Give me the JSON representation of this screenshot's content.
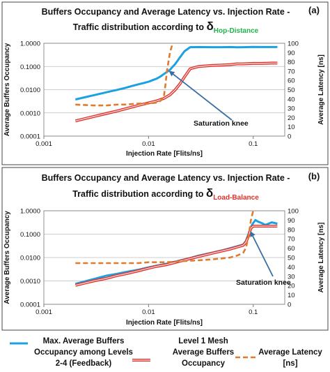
{
  "chart_data": [
    {
      "type": "line",
      "panel": "(a)",
      "title_line1": "Buffers Occupancy and Average Latency vs. Injection Rate -",
      "title_line2": "Traffic distribution according to",
      "delta_symbol": "δ",
      "delta_subscript": "Hop-Distance",
      "delta_color": "#22b14c",
      "xlabel": "Injection Rate [Flits/ns]",
      "ylabel_left": "Average Buffers Occupancy",
      "ylabel_right": "Average Latency [ns]",
      "x_scale": "log",
      "xlim": [
        0.001,
        0.2
      ],
      "x_ticks": [
        "0.001",
        "0.01",
        "0.1"
      ],
      "y_left_scale": "log",
      "y_left_lim": [
        0.0001,
        1.0
      ],
      "y_left_ticks": [
        "1.0000",
        "0.1000",
        "0.0100",
        "0.0010",
        "0.0001"
      ],
      "y_right_lim": [
        0,
        100
      ],
      "y_right_ticks": [
        "100",
        "90",
        "80",
        "70",
        "60",
        "50",
        "40",
        "30",
        "20",
        "10",
        "0"
      ],
      "annotation": "Saturation knee",
      "annotation_point": [
        0.016,
        0.06
      ],
      "series": [
        {
          "key": "feedback",
          "axis": "left",
          "color": "#1ba1e2",
          "x": [
            0.002,
            0.003,
            0.004,
            0.005,
            0.006,
            0.007,
            0.008,
            0.009,
            0.01,
            0.011,
            0.012,
            0.013,
            0.014,
            0.015,
            0.016,
            0.018,
            0.02,
            0.022,
            0.025,
            0.03,
            0.04,
            0.05,
            0.06,
            0.07,
            0.08,
            0.1,
            0.12,
            0.15,
            0.17
          ],
          "y": [
            0.0038,
            0.0058,
            0.0078,
            0.0098,
            0.012,
            0.0145,
            0.017,
            0.0195,
            0.022,
            0.026,
            0.03,
            0.037,
            0.047,
            0.058,
            0.072,
            0.13,
            0.25,
            0.45,
            0.68,
            0.69,
            0.68,
            0.68,
            0.69,
            0.67,
            0.68,
            0.7,
            0.69,
            0.69,
            0.69
          ]
        },
        {
          "key": "level1",
          "axis": "left",
          "color": "#e0302a",
          "x": [
            0.002,
            0.003,
            0.004,
            0.005,
            0.006,
            0.007,
            0.008,
            0.009,
            0.01,
            0.011,
            0.012,
            0.014,
            0.016,
            0.018,
            0.02,
            0.022,
            0.025,
            0.03,
            0.035,
            0.04,
            0.05,
            0.06,
            0.07,
            0.08,
            0.1,
            0.12,
            0.15,
            0.17
          ],
          "y": [
            0.00045,
            0.0007,
            0.00095,
            0.0012,
            0.0015,
            0.0018,
            0.0021,
            0.0024,
            0.0027,
            0.003,
            0.0033,
            0.0042,
            0.006,
            0.01,
            0.018,
            0.035,
            0.08,
            0.1,
            0.105,
            0.11,
            0.115,
            0.12,
            0.13,
            0.13,
            0.135,
            0.135,
            0.14,
            0.14
          ]
        },
        {
          "key": "latency",
          "axis": "right",
          "color": "#e07b2e",
          "dashed": true,
          "x": [
            0.002,
            0.003,
            0.004,
            0.005,
            0.006,
            0.008,
            0.01,
            0.012,
            0.013,
            0.014,
            0.0145,
            0.015,
            0.016,
            0.017
          ],
          "y": [
            34,
            33,
            33,
            34,
            34,
            35,
            35,
            36,
            38,
            42,
            55,
            70,
            90,
            100
          ]
        }
      ]
    },
    {
      "type": "line",
      "panel": "(b)",
      "title_line1": "Buffers Occupancy and Average Latency vs. Injection Rate -",
      "title_line2": "Traffic distribution according to",
      "delta_symbol": "δ",
      "delta_subscript": "Load-Balance",
      "delta_color": "#e0302a",
      "xlabel": "Injection Rate [Flits/ns]",
      "ylabel_left": "Average Buffers Occupancy",
      "ylabel_right": "Average Latency [ns]",
      "x_scale": "log",
      "xlim": [
        0.001,
        0.2
      ],
      "x_ticks": [
        "0.001",
        "0.01",
        "0.1"
      ],
      "y_left_scale": "log",
      "y_left_lim": [
        0.0001,
        1.0
      ],
      "y_left_ticks": [
        "1.0000",
        "0.1000",
        "0.0100",
        "0.0010",
        "0.0001"
      ],
      "y_right_lim": [
        0,
        100
      ],
      "y_right_ticks": [
        "100",
        "90",
        "80",
        "70",
        "60",
        "50",
        "40",
        "30",
        "20",
        "10",
        "0"
      ],
      "annotation": "Saturation knee",
      "annotation_point": [
        0.095,
        0.12
      ],
      "series": [
        {
          "key": "feedback",
          "axis": "left",
          "color": "#1ba1e2",
          "x": [
            0.002,
            0.003,
            0.004,
            0.005,
            0.006,
            0.008,
            0.01,
            0.012,
            0.015,
            0.02,
            0.025,
            0.03,
            0.04,
            0.05,
            0.06,
            0.07,
            0.08,
            0.085,
            0.09,
            0.095,
            0.1,
            0.105,
            0.11,
            0.12,
            0.13,
            0.14,
            0.15,
            0.16,
            0.17
          ],
          "y": [
            0.00075,
            0.0012,
            0.0017,
            0.002,
            0.0024,
            0.003,
            0.0038,
            0.0045,
            0.0055,
            0.0075,
            0.0095,
            0.012,
            0.016,
            0.02,
            0.025,
            0.03,
            0.036,
            0.05,
            0.1,
            0.2,
            0.3,
            0.4,
            0.35,
            0.3,
            0.25,
            0.28,
            0.32,
            0.3,
            0.28
          ]
        },
        {
          "key": "level1",
          "axis": "left",
          "color": "#e0302a",
          "x": [
            0.002,
            0.003,
            0.004,
            0.005,
            0.006,
            0.008,
            0.01,
            0.012,
            0.015,
            0.02,
            0.025,
            0.03,
            0.04,
            0.05,
            0.06,
            0.07,
            0.08,
            0.085,
            0.09,
            0.095,
            0.1,
            0.11,
            0.12,
            0.14,
            0.17
          ],
          "y": [
            0.00065,
            0.001,
            0.0013,
            0.0017,
            0.002,
            0.0027,
            0.0035,
            0.0042,
            0.005,
            0.007,
            0.009,
            0.011,
            0.015,
            0.019,
            0.023,
            0.028,
            0.033,
            0.045,
            0.08,
            0.18,
            0.22,
            0.22,
            0.22,
            0.22,
            0.22
          ]
        },
        {
          "key": "latency",
          "axis": "right",
          "color": "#e07b2e",
          "dashed": true,
          "x": [
            0.002,
            0.003,
            0.005,
            0.008,
            0.01,
            0.015,
            0.02,
            0.03,
            0.04,
            0.05,
            0.06,
            0.07,
            0.08,
            0.085,
            0.09,
            0.095,
            0.1
          ],
          "y": [
            44,
            44,
            44,
            44,
            45,
            45,
            46,
            47,
            48,
            49,
            50,
            52,
            55,
            60,
            72,
            90,
            100
          ]
        }
      ]
    }
  ],
  "legend": [
    {
      "key": "feedback",
      "text": [
        "Max. Average Buffers",
        "Occupancy among Levels",
        "2-4 (Feedback)"
      ]
    },
    {
      "key": "level1",
      "text": [
        "Level 1 Mesh",
        "Average Buffers",
        "Occupancy"
      ]
    },
    {
      "key": "latency",
      "text": [
        "Average Latency",
        "[ns]"
      ]
    }
  ]
}
